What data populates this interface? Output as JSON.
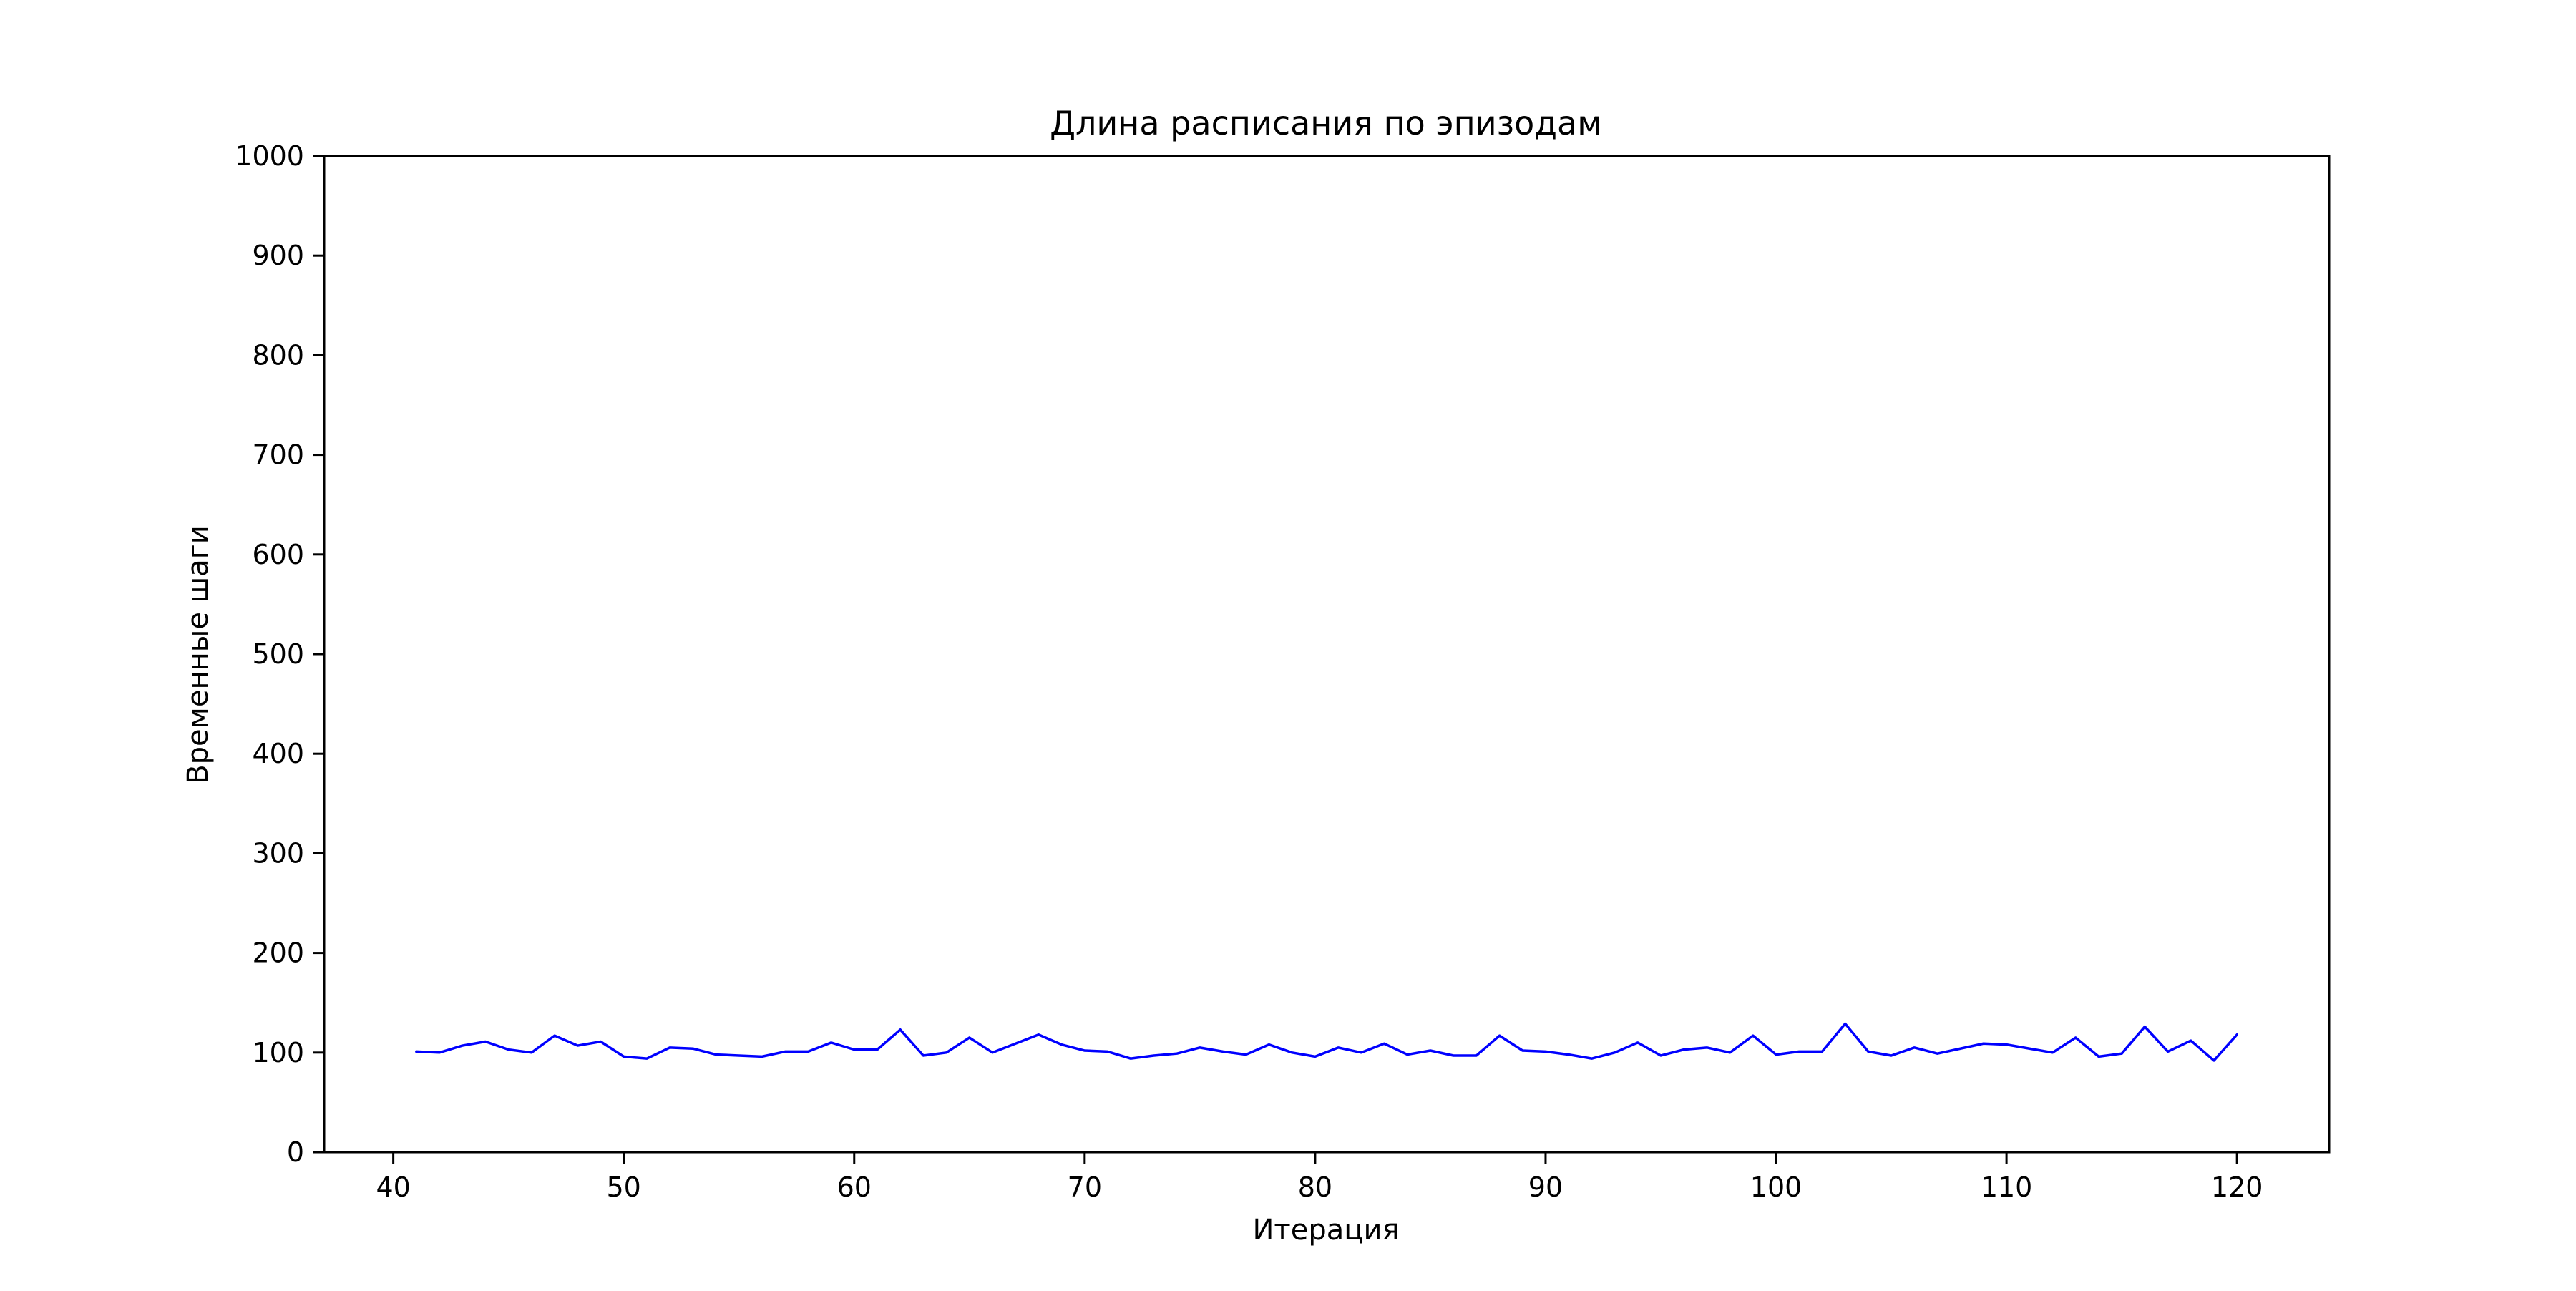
{
  "chart_data": {
    "type": "line",
    "title": "Длина расписания по эпизодам",
    "xlabel": "Итерация",
    "ylabel": "Временные шаги",
    "xlim": [
      37,
      124
    ],
    "ylim": [
      0,
      1000
    ],
    "xticks": [
      40,
      50,
      60,
      70,
      80,
      90,
      100,
      110,
      120
    ],
    "yticks": [
      0,
      100,
      200,
      300,
      400,
      500,
      600,
      700,
      800,
      900,
      1000
    ],
    "grid": false,
    "legend": "none",
    "line_color": "#0000ff",
    "series": [
      {
        "x": [
          41,
          42,
          43,
          44,
          45,
          46,
          47,
          48,
          49,
          50,
          51,
          52,
          53,
          54,
          55,
          56,
          57,
          58,
          59,
          60,
          61,
          62,
          63,
          64,
          65,
          66,
          67,
          68,
          69,
          70,
          71,
          72,
          73,
          74,
          75,
          76,
          77,
          78,
          79,
          80,
          81,
          82,
          83,
          84,
          85,
          86,
          87,
          88,
          89,
          90,
          91,
          92,
          93,
          94,
          95,
          96,
          97,
          98,
          99,
          100,
          101,
          102,
          103,
          104,
          105,
          106,
          107,
          108,
          109,
          110,
          111,
          112,
          113,
          114,
          115,
          116,
          117,
          118,
          119,
          120
        ],
        "values": [
          101,
          100,
          107,
          111,
          103,
          100,
          117,
          107,
          111,
          96,
          94,
          105,
          104,
          98,
          97,
          96,
          101,
          101,
          110,
          103,
          103,
          123,
          97,
          100,
          115,
          100,
          109,
          118,
          108,
          102,
          101,
          94,
          97,
          99,
          105,
          101,
          98,
          108,
          100,
          96,
          105,
          100,
          109,
          98,
          102,
          97,
          97,
          117,
          102,
          101,
          98,
          94,
          100,
          110,
          97,
          103,
          105,
          100,
          117,
          98,
          101,
          101,
          129,
          101,
          97,
          105,
          99,
          104,
          109,
          108,
          104,
          100,
          115,
          96,
          99,
          126,
          101,
          112,
          92,
          118
        ]
      }
    ]
  }
}
